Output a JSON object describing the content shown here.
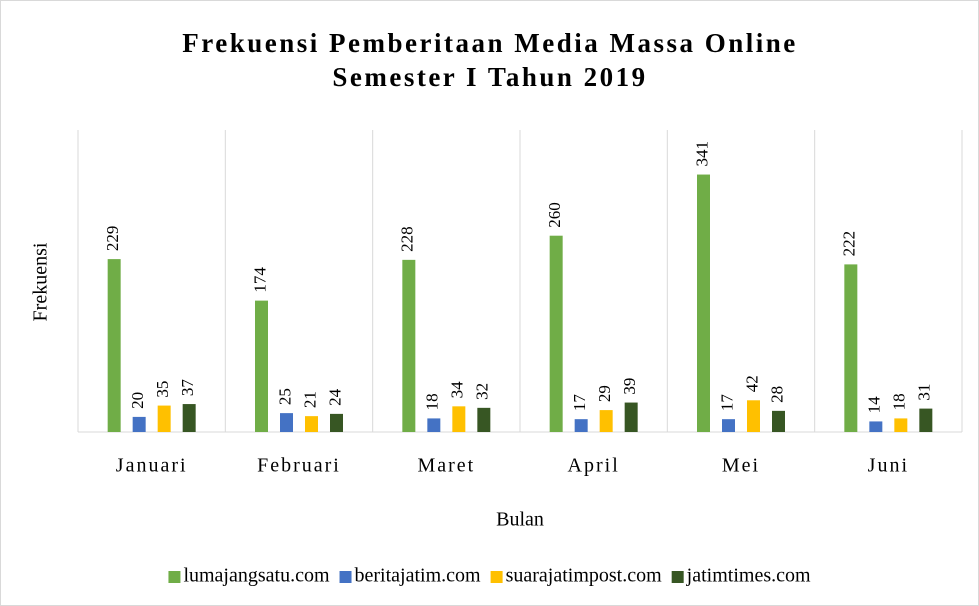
{
  "chart_data": {
    "type": "bar",
    "title": "Frekuensi Pemberitaan Media Massa Online",
    "subtitle": "Semester I Tahun 2019",
    "x_label": "Bulan",
    "y_label": "Frekuensi",
    "categories": [
      "Januari",
      "Februari",
      "Maret",
      "April",
      "Mei",
      "Juni"
    ],
    "series": [
      {
        "name": "lumajangsatu.com",
        "color": "#70ad47",
        "values": [
          229,
          174,
          228,
          260,
          341,
          222
        ]
      },
      {
        "name": "beritajatim.com",
        "color": "#4472c4",
        "values": [
          20,
          25,
          18,
          17,
          17,
          14
        ]
      },
      {
        "name": "suarajatimpost.com",
        "color": "#ffc000",
        "values": [
          35,
          21,
          34,
          29,
          42,
          18
        ]
      },
      {
        "name": "jatimtimes.com",
        "color": "#375623",
        "values": [
          37,
          24,
          32,
          39,
          28,
          31
        ]
      }
    ],
    "ylim": [
      0,
      400
    ],
    "legend": "bottom"
  }
}
